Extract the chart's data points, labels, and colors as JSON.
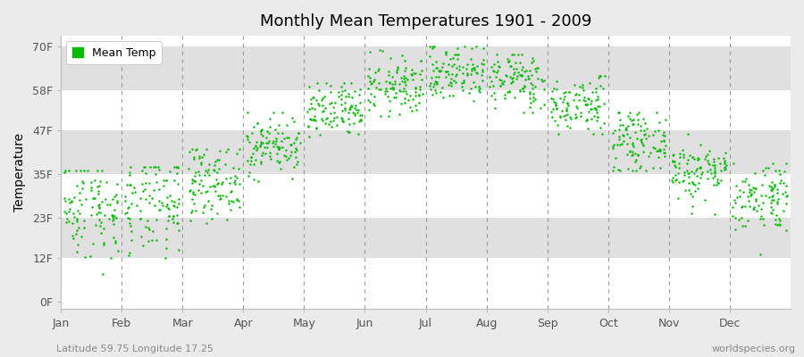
{
  "title": "Monthly Mean Temperatures 1901 - 2009",
  "ylabel": "Temperature",
  "xlabel_labels": [
    "Jan",
    "Feb",
    "Mar",
    "Apr",
    "May",
    "Jun",
    "Jul",
    "Aug",
    "Sep",
    "Oct",
    "Nov",
    "Dec"
  ],
  "ytick_labels": [
    "0F",
    "12F",
    "23F",
    "35F",
    "47F",
    "58F",
    "70F"
  ],
  "ytick_values": [
    0,
    12,
    23,
    35,
    47,
    58,
    70
  ],
  "ylim": [
    -2,
    73
  ],
  "subtitle": "Latitude 59.75 Longitude 17.25",
  "watermark": "worldspecies.org",
  "dot_color": "#00bb00",
  "bg_color": "#ebebeb",
  "plot_bg_white": "#ffffff",
  "stripe_color": "#e0e0e0",
  "years": 109,
  "monthly_means_F": [
    26,
    26,
    33,
    43,
    52,
    59,
    63,
    61,
    54,
    44,
    36,
    29
  ],
  "monthly_stds_F": [
    7,
    7,
    5,
    4,
    4,
    4,
    4,
    4,
    4,
    4,
    4,
    5
  ],
  "monthly_mins_F": [
    6,
    5,
    20,
    33,
    43,
    51,
    55,
    52,
    46,
    36,
    24,
    13
  ],
  "monthly_maxs_F": [
    36,
    37,
    42,
    52,
    60,
    69,
    70,
    68,
    62,
    52,
    46,
    38
  ]
}
